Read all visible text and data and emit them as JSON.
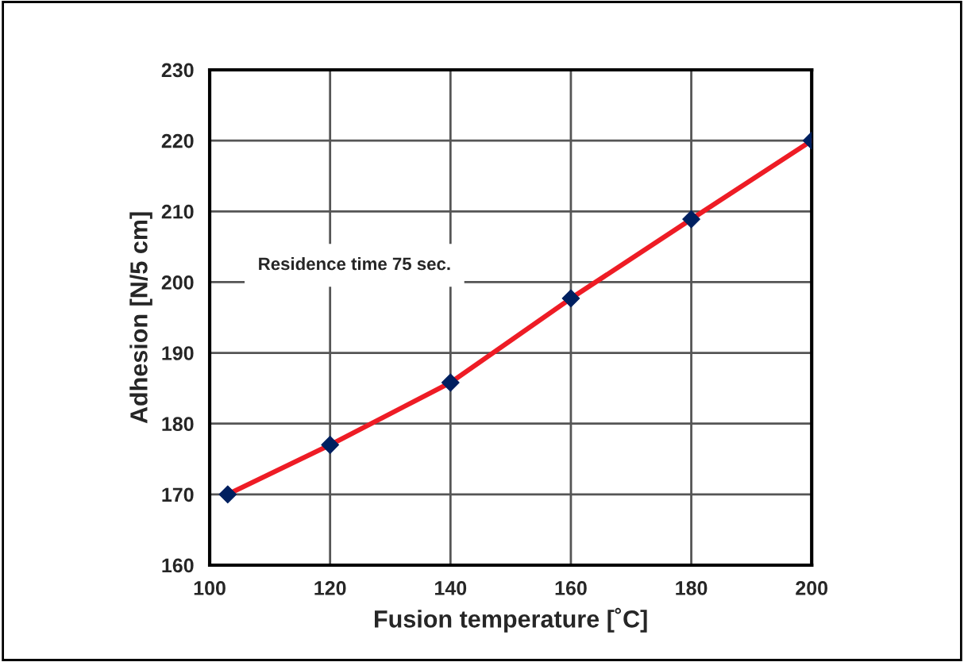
{
  "chart_data": {
    "type": "line",
    "xlabel": "Fusion temperature [˚C]",
    "ylabel": "Adhesion [N/5 cm]",
    "annotations": [
      "Residence time 75 sec."
    ],
    "x": [
      103,
      120,
      140,
      160,
      180,
      200
    ],
    "series": [
      {
        "color": "#ee1c25",
        "marker": "none",
        "values": [
          170,
          177,
          185.8,
          197.7,
          208.9,
          220
        ]
      },
      {
        "type": "scatter",
        "color": "#002060",
        "marker": "diamond",
        "values": [
          170,
          177,
          185.8,
          197.7,
          208.9,
          220
        ]
      }
    ],
    "xlim": [
      100,
      200
    ],
    "xticks": [
      100,
      120,
      140,
      160,
      180,
      200
    ],
    "ylim": [
      160,
      230
    ],
    "yticks": [
      160,
      170,
      180,
      190,
      200,
      210,
      220,
      230
    ],
    "grid": true,
    "legend": false
  }
}
